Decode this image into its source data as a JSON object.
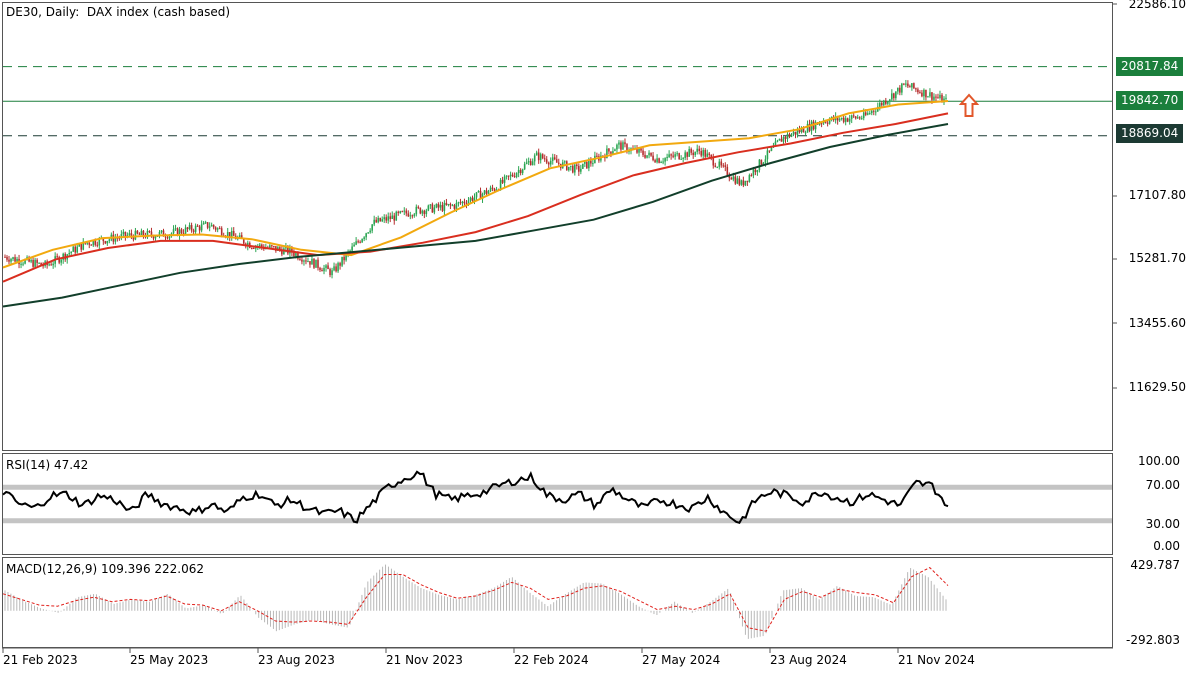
{
  "header": {
    "symbol": "DE30",
    "timeframe": "Daily:",
    "description": "DAX index (cash based)"
  },
  "chart_data": {
    "type": "candlestick",
    "title": "DE30, Daily:  DAX index (cash based)",
    "x_tick_labels": [
      "21 Feb 2023",
      "25 May 2023",
      "23 Aug 2023",
      "21 Nov 2023",
      "22 Feb 2024",
      "27 May 2024",
      "23 Aug 2024",
      "21 Nov 2024"
    ],
    "price_axis": {
      "tick_labels": [
        "22586.10",
        "17107.80",
        "15281.70",
        "13455.60",
        "11629.50"
      ],
      "ylim": [
        10000,
        22586.1
      ]
    },
    "horizontal_levels": [
      {
        "value": "20817.84",
        "style": "dashed",
        "color": "#1b7f3c"
      },
      {
        "value": "19842.70",
        "style": "solid",
        "color": "#1b7f3c"
      },
      {
        "value": "18869.04",
        "style": "dashed",
        "color": "#1c3a33"
      }
    ],
    "annotation": {
      "type": "arrow-up",
      "color": "#e2572b"
    },
    "price_series": [
      {
        "date": "Feb 2023",
        "close": 15450
      },
      {
        "date": "Mar 2023",
        "close": 15200
      },
      {
        "date": "Apr 2023",
        "close": 15850
      },
      {
        "date": "May 2023",
        "close": 16050
      },
      {
        "date": "Jun 2023",
        "close": 16100
      },
      {
        "date": "Jul 2023",
        "close": 16350
      },
      {
        "date": "Aug 2023",
        "close": 15800
      },
      {
        "date": "Sep 2023",
        "close": 15600
      },
      {
        "date": "Oct 2023",
        "close": 15000
      },
      {
        "date": "Nov 2023",
        "close": 16400
      },
      {
        "date": "Dec 2023",
        "close": 16750
      },
      {
        "date": "Jan 2024",
        "close": 16900
      },
      {
        "date": "Feb 2024",
        "close": 17400
      },
      {
        "date": "Mar 2024",
        "close": 18300
      },
      {
        "date": "Apr 2024",
        "close": 17900
      },
      {
        "date": "May 2024",
        "close": 18600
      },
      {
        "date": "Jun 2024",
        "close": 18200
      },
      {
        "date": "Jul 2024",
        "close": 18450
      },
      {
        "date": "Aug 2024",
        "close": 17500
      },
      {
        "date": "Sep 2024",
        "close": 18800
      },
      {
        "date": "Oct 2024",
        "close": 19300
      },
      {
        "date": "Nov 2024",
        "close": 19400
      },
      {
        "date": "Dec 2024",
        "close": 20300
      },
      {
        "date": "Dec 2024 (last)",
        "close": 19842.7
      }
    ],
    "moving_averages": [
      {
        "color": "#f2a90f",
        "values": [
          15150,
          15650,
          15980,
          16050,
          16080,
          15950,
          15650,
          15500,
          16000,
          16700,
          17350,
          17950,
          18250,
          18600,
          18700,
          18800,
          19050,
          19500,
          19750,
          19850
        ]
      },
      {
        "color": "#d92e1f",
        "values": [
          14750,
          15380,
          15700,
          15900,
          15900,
          15700,
          15500,
          15600,
          15850,
          16150,
          16600,
          17200,
          17750,
          18100,
          18400,
          18650,
          18950,
          19200,
          19500
        ]
      },
      {
        "color": "#123f2b",
        "values": [
          14050,
          14300,
          14650,
          15000,
          15250,
          15450,
          15600,
          15750,
          15900,
          16200,
          16500,
          17000,
          17600,
          18100,
          18550,
          18900,
          19200
        ]
      }
    ],
    "rsi": {
      "label": "RSI(14) 47.42",
      "value": 47.42,
      "levels": [
        "70.00",
        "30.00"
      ],
      "tick_labels": [
        "100.00",
        "70.00",
        "30.00",
        "0.00"
      ],
      "ylim": [
        0,
        100
      ],
      "values": [
        65,
        50,
        45,
        60,
        62,
        48,
        60,
        55,
        40,
        62,
        50,
        45,
        40,
        50,
        40,
        58,
        62,
        48,
        55,
        45,
        38,
        42,
        30,
        50,
        70,
        80,
        88,
        62,
        55,
        60,
        64,
        72,
        78,
        82,
        60,
        55,
        62,
        48,
        68,
        55,
        45,
        55,
        50,
        45,
        58,
        40,
        28,
        55,
        65,
        60,
        52,
        65,
        58,
        52,
        62,
        55,
        48,
        75,
        72,
        47.42
      ]
    },
    "macd": {
      "label": "MACD(12,26,9) 109.396 222.062",
      "macd_value": 109.396,
      "signal_value": 222.062,
      "tick_labels": [
        "429.787",
        "-292.803"
      ],
      "ylim": [
        -292.803,
        429.787
      ],
      "histogram": [
        180,
        90,
        20,
        -20,
        120,
        150,
        60,
        100,
        80,
        150,
        20,
        50,
        -30,
        140,
        -60,
        -180,
        -120,
        -80,
        -120,
        -150,
        250,
        410,
        300,
        200,
        140,
        100,
        140,
        200,
        300,
        160,
        40,
        150,
        250,
        240,
        150,
        40,
        -40,
        80,
        -20,
        80,
        200,
        -250,
        -220,
        180,
        200,
        100,
        220,
        130,
        120,
        50,
        380,
        300,
        100
      ],
      "signal": [
        150,
        100,
        50,
        40,
        90,
        120,
        80,
        100,
        90,
        130,
        60,
        50,
        0,
        80,
        0,
        -90,
        -100,
        -90,
        -100,
        -120,
        120,
        320,
        320,
        230,
        160,
        110,
        130,
        180,
        250,
        200,
        100,
        130,
        200,
        220,
        170,
        90,
        10,
        40,
        10,
        60,
        150,
        -150,
        -180,
        100,
        170,
        120,
        190,
        160,
        140,
        70,
        300,
        380,
        222.062
      ]
    }
  }
}
